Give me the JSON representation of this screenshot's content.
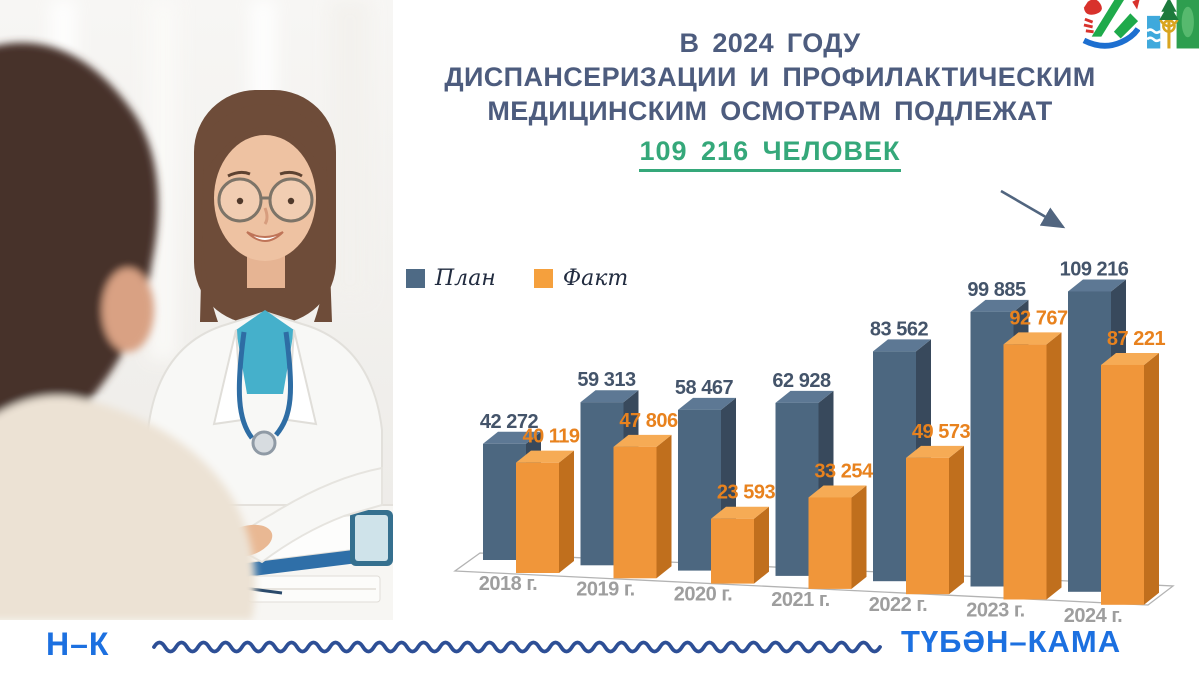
{
  "title": {
    "lines": [
      "В 2024 ГОДУ",
      "ДИСПАНСЕРИЗАЦИИ И ПРОФИЛАКТИЧЕСКИМ",
      "МЕДИЦИНСКИМ ОСМОТРАМ ПОДЛЕЖАТ"
    ],
    "highlight": "109 216 ЧЕЛОВЕК",
    "text_color": "#4d5c7e",
    "highlight_color": "#35a87a"
  },
  "legend": {
    "items": [
      {
        "label": "План",
        "color": "#4e6a85"
      },
      {
        "label": "Факт",
        "color": "#f5a03d"
      }
    ]
  },
  "chart_data": {
    "type": "bar",
    "style": "3d-clustered",
    "title": "",
    "categories": [
      "2018 г.",
      "2019 г.",
      "2020 г.",
      "2021 г.",
      "2022 г.",
      "2023 г.",
      "2024 г."
    ],
    "series": [
      {
        "name": "План",
        "color": "#4c6780",
        "label_color": "#44546a",
        "values": [
          42272,
          59313,
          58467,
          62928,
          83562,
          99885,
          109216
        ]
      },
      {
        "name": "Факт",
        "color": "#f0963a",
        "label_color": "#e8821e",
        "values": [
          40119,
          47806,
          23593,
          33254,
          49573,
          92767,
          87221
        ]
      }
    ],
    "value_labels": true,
    "legend_position": "top-left",
    "axis_label_color": "#9e9e9e",
    "ylim": [
      0,
      115000
    ],
    "grid": false
  },
  "footer": {
    "left": "Н–К",
    "right": "ТҮБӘН–КАМА",
    "color": "#1c70e0"
  }
}
